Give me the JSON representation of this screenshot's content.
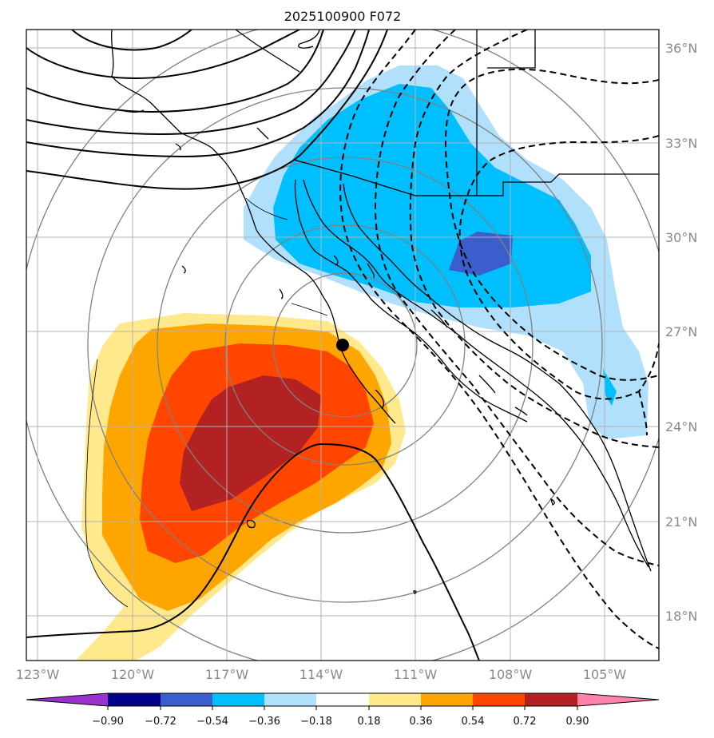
{
  "title": "2025100900 F072",
  "lat_labels": [
    "36°N",
    "33°N",
    "30°N",
    "27°N",
    "24°N",
    "21°N",
    "18°N"
  ],
  "lon_labels": [
    "123°W",
    "120°W",
    "117°W",
    "114°W",
    "111°W",
    "108°W",
    "105°W"
  ],
  "colorbar": {
    "labels": [
      "−0.90",
      "−0.72",
      "−0.54",
      "−0.36",
      "−0.18",
      "0.18",
      "0.36",
      "0.54",
      "0.72",
      "0.90"
    ],
    "colors": [
      "#9932cc",
      "#00008b",
      "#3a5fcd",
      "#00bfff",
      "#b0e0fb",
      "#ffffff",
      "#ffe98c",
      "#ffa500",
      "#ff4500",
      "#b22222",
      "#ff82ab"
    ]
  },
  "field_colors": {
    "pos_1": "#ffe98c",
    "pos_2": "#ffa500",
    "pos_3": "#ff4500",
    "pos_4": "#b22222",
    "neg_1": "#b0e0fb",
    "neg_2": "#00bfff",
    "neg_3": "#3a5fcd"
  },
  "marker": {
    "label": "storm-center",
    "lon": "-113.3",
    "lat": "26.5"
  }
}
